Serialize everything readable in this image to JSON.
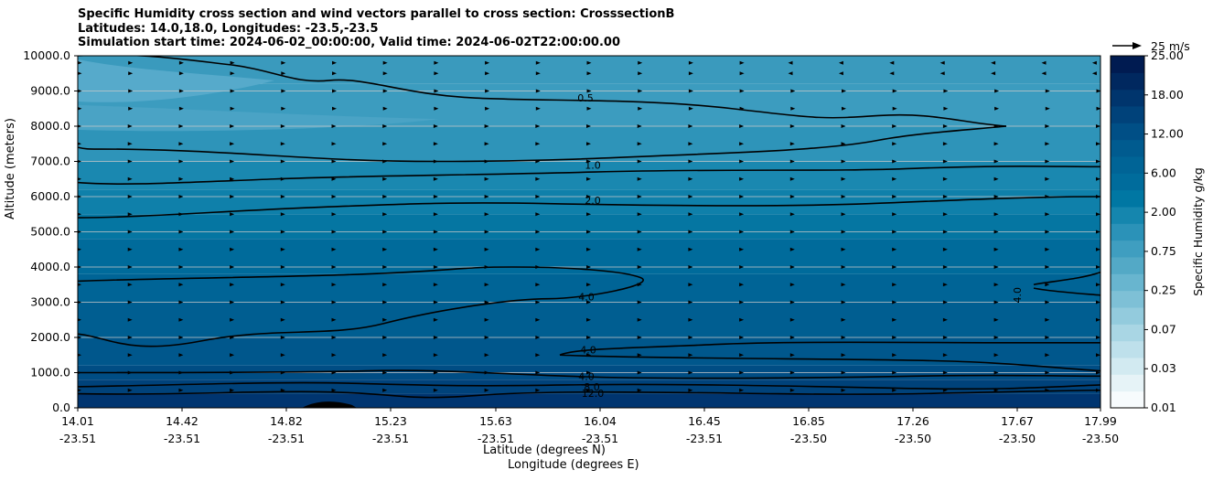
{
  "chart_data": {
    "type": "heatmap",
    "title_lines": [
      "Specific Humidity cross section and wind vectors parallel to cross section: CrosssectionB",
      "Latitudes: 14.0,18.0, Longitudes: -23.5,-23.5",
      "Simulation start time: 2024-06-02_00:00:00, Valid time: 2024-06-02T22:00:00.00"
    ],
    "xlabel": "Latitude (degrees N)",
    "xlabel2": "Longitude (degrees E)",
    "ylabel": "Altitude (meters)",
    "ylim": [
      0,
      10000
    ],
    "ytick_labels": [
      "0.0",
      "1000.0",
      "2000.0",
      "3000.0",
      "4000.0",
      "5000.0",
      "6000.0",
      "7000.0",
      "8000.0",
      "9000.0",
      "10000.0"
    ],
    "xtick_lat": [
      "14.01",
      "14.42",
      "14.82",
      "15.23",
      "15.63",
      "16.04",
      "16.45",
      "16.85",
      "17.26",
      "17.67",
      "17.99"
    ],
    "xtick_lon": [
      "-23.51",
      "-23.51",
      "-23.51",
      "-23.51",
      "-23.51",
      "-23.51",
      "-23.51",
      "-23.50",
      "-23.50",
      "-23.50",
      "-23.50"
    ],
    "colorbar": {
      "label": "Specific Humidity g/kg",
      "tick_labels": [
        "0.01",
        "0.03",
        "0.07",
        "0.25",
        "0.75",
        "2.00",
        "6.00",
        "12.00",
        "18.00",
        "25.00"
      ],
      "colors": [
        "#f7fbfd",
        "#e6f3f7",
        "#d2eaf1",
        "#bee0eb",
        "#a9d6e4",
        "#93cbdd",
        "#7ec0d6",
        "#68b5cf",
        "#53a9c6",
        "#3f9ec0",
        "#2b92b8",
        "#1586ae",
        "#0077a3",
        "#006c9c",
        "#006496",
        "#005b8f",
        "#004f86",
        "#00427a",
        "#00356d",
        "#00285f",
        "#001b51"
      ]
    },
    "contours": [
      {
        "label": "0.5",
        "altitude_m": 8800
      },
      {
        "label": "1.0",
        "altitude_m": 6900
      },
      {
        "label": "2.0",
        "altitude_m": 5900
      },
      {
        "label": "4.0",
        "altitude_m": 3400
      },
      {
        "label": "4.0",
        "altitude_m": 1700
      },
      {
        "label": "4.0",
        "altitude_m": 900
      },
      {
        "label": "8.0",
        "altitude_m": 600
      },
      {
        "label": "12.0",
        "altitude_m": 400
      },
      {
        "label": "4.0",
        "altitude_m": 3400
      }
    ],
    "quiver_key": {
      "label": "25 m/s",
      "speed": 25
    }
  }
}
